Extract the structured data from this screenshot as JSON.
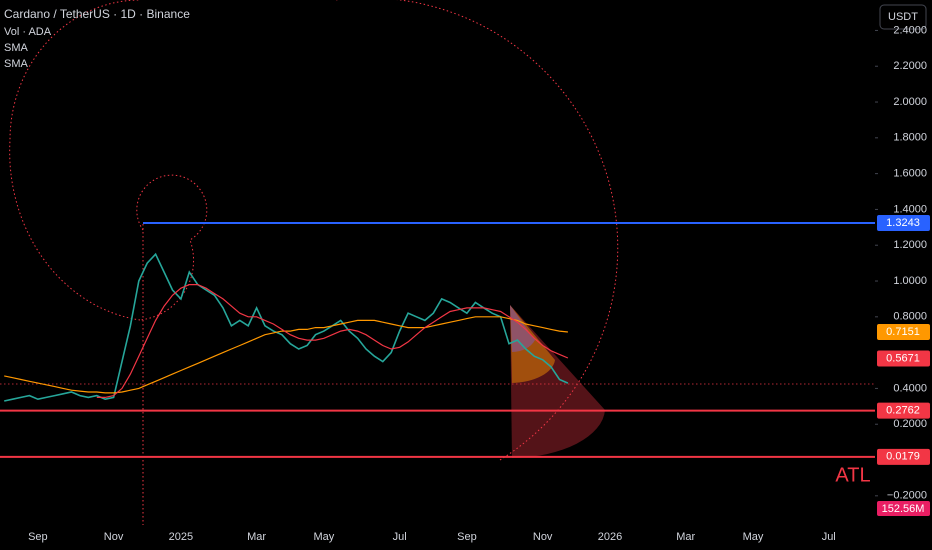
{
  "chart_data": {
    "type": "line",
    "title": "Cardano / TetherUS · 1D · Binance",
    "legend_lines": [
      "Vol · ADA",
      "SMA",
      "SMA"
    ],
    "currency_button": "USDT",
    "annotation": "ATL",
    "volume_label": "152.56M",
    "categories": [
      null,
      null,
      null,
      null,
      "Sep",
      null,
      null,
      null,
      null,
      null,
      null,
      null,
      null,
      "Nov",
      null,
      null,
      null,
      null,
      null,
      null,
      null,
      "2025",
      null,
      null,
      null,
      null,
      null,
      null,
      null,
      null,
      "Mar",
      null,
      null,
      null,
      null,
      null,
      null,
      null,
      "May",
      null,
      null,
      null,
      null,
      null,
      null,
      null,
      null,
      "Jul",
      null,
      null,
      null,
      null,
      null,
      null,
      null,
      "Sep",
      null,
      null,
      null,
      null,
      null,
      null,
      null,
      null,
      "Nov",
      null,
      null,
      null,
      null,
      null,
      null,
      null,
      "2026",
      null,
      null,
      null,
      null,
      null,
      null,
      null,
      null,
      "Mar",
      null,
      null,
      null,
      null,
      null,
      null,
      null,
      "May",
      null,
      null,
      null,
      null,
      null,
      null,
      null,
      null,
      "Jul",
      null,
      null,
      null,
      null,
      null
    ],
    "series": [
      {
        "color": "#26a69a",
        "values": [
          0.33,
          0.34,
          0.35,
          0.36,
          0.34,
          0.35,
          0.36,
          0.37,
          0.38,
          0.36,
          0.35,
          0.36,
          0.34,
          0.35,
          0.55,
          0.75,
          1.0,
          1.1,
          1.15,
          1.05,
          0.95,
          0.9,
          1.05,
          0.98,
          0.95,
          0.92,
          0.85,
          0.75,
          0.78,
          0.75,
          0.85,
          0.75,
          0.72,
          0.7,
          0.65,
          0.62,
          0.64,
          0.7,
          0.72,
          0.75,
          0.78,
          0.72,
          0.68,
          0.62,
          0.58,
          0.55,
          0.6,
          0.72,
          0.82,
          0.8,
          0.78,
          0.82,
          0.9,
          0.88,
          0.85,
          0.82,
          0.88,
          0.85,
          0.82,
          0.8,
          0.65,
          0.67,
          0.62,
          0.58,
          0.56,
          0.52,
          0.45,
          0.43,
          null,
          null,
          null,
          null,
          null,
          null,
          null,
          null,
          null,
          null,
          null,
          null,
          null,
          null,
          null,
          null,
          null,
          null,
          null,
          null,
          null,
          null,
          null,
          null,
          null,
          null,
          null,
          null,
          null,
          null,
          null,
          null,
          null,
          null,
          null,
          null
        ]
      },
      {
        "color": "#ff9800",
        "values": [
          0.47,
          0.46,
          0.45,
          0.44,
          0.43,
          0.42,
          0.41,
          0.4,
          0.39,
          0.385,
          0.38,
          0.38,
          0.375,
          0.375,
          0.38,
          0.39,
          0.4,
          0.42,
          0.44,
          0.46,
          0.48,
          0.5,
          0.52,
          0.54,
          0.56,
          0.58,
          0.6,
          0.62,
          0.64,
          0.66,
          0.68,
          0.7,
          0.71,
          0.72,
          0.72,
          0.73,
          0.73,
          0.74,
          0.74,
          0.75,
          0.76,
          0.77,
          0.78,
          0.78,
          0.78,
          0.77,
          0.76,
          0.75,
          0.74,
          0.74,
          0.74,
          0.75,
          0.76,
          0.77,
          0.78,
          0.79,
          0.8,
          0.8,
          0.8,
          0.8,
          0.79,
          0.78,
          0.76,
          0.75,
          0.74,
          0.73,
          0.72,
          0.715,
          null,
          null,
          null,
          null,
          null,
          null,
          null,
          null,
          null,
          null,
          null,
          null,
          null,
          null,
          null,
          null,
          null,
          null,
          null,
          null,
          null,
          null,
          null,
          null,
          null,
          null,
          null,
          null,
          null,
          null,
          null,
          null,
          null,
          null,
          null,
          null
        ]
      },
      {
        "color": "#f23645",
        "values": [
          null,
          null,
          null,
          null,
          null,
          null,
          null,
          null,
          null,
          null,
          null,
          0.35,
          0.35,
          0.36,
          0.4,
          0.48,
          0.58,
          0.68,
          0.78,
          0.86,
          0.92,
          0.96,
          0.98,
          0.98,
          0.96,
          0.93,
          0.9,
          0.86,
          0.82,
          0.8,
          0.8,
          0.78,
          0.76,
          0.73,
          0.7,
          0.68,
          0.67,
          0.67,
          0.68,
          0.7,
          0.72,
          0.73,
          0.72,
          0.7,
          0.67,
          0.64,
          0.62,
          0.63,
          0.66,
          0.7,
          0.74,
          0.77,
          0.8,
          0.83,
          0.84,
          0.85,
          0.85,
          0.85,
          0.84,
          0.83,
          0.8,
          0.77,
          0.73,
          0.68,
          0.64,
          0.61,
          0.59,
          0.57,
          null,
          null,
          null,
          null,
          null,
          null,
          null,
          null,
          null,
          null,
          null,
          null,
          null,
          null,
          null,
          null,
          null,
          null,
          null,
          null,
          null,
          null,
          null,
          null,
          null,
          null,
          null,
          null,
          null,
          null,
          null,
          null,
          null,
          null,
          null,
          null
        ]
      }
    ],
    "ylim": [
      -0.363,
      2.57
    ],
    "yticks": [
      {
        "value": 2.4,
        "label": "2.4000"
      },
      {
        "value": 2.2,
        "label": "2.2000"
      },
      {
        "value": 2.0,
        "label": "2.0000"
      },
      {
        "value": 1.8,
        "label": "1.8000"
      },
      {
        "value": 1.6,
        "label": "1.6000"
      },
      {
        "value": 1.4,
        "label": "1.4000"
      },
      {
        "value": 1.2,
        "label": "1.2000"
      },
      {
        "value": 1.0,
        "label": "1.0000"
      },
      {
        "value": 0.8,
        "label": "0.8000"
      },
      {
        "value": 0.4,
        "label": "0.4000"
      },
      {
        "value": 0.2,
        "label": "0.2000"
      },
      {
        "value": -0.2,
        "label": "−0.2000"
      }
    ],
    "price_tags": [
      {
        "value": 1.3243,
        "label": "1.3243",
        "color": "#2962ff",
        "line": true
      },
      {
        "value": 0.7151,
        "label": "0.7151",
        "color": "#ff9800",
        "line": false
      },
      {
        "value": 0.5671,
        "label": "0.5671",
        "color": "#f23645",
        "line": false
      },
      {
        "value": 0.2762,
        "label": "0.2762",
        "color": "#f23645",
        "line": true
      },
      {
        "value": 0.0179,
        "label": "0.0179",
        "color": "#f23645",
        "line": true
      }
    ]
  }
}
